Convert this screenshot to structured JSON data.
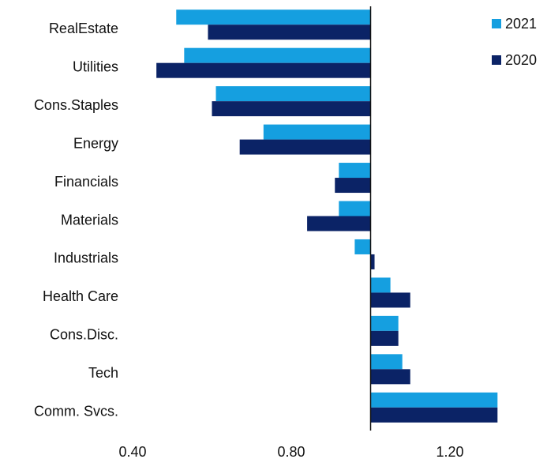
{
  "chart_data": {
    "type": "hbar",
    "categories": [
      "RealEstate",
      "Utilities",
      "Cons.Staples",
      "Energy",
      "Financials",
      "Materials",
      "Industrials",
      "Health Care",
      "Cons.Disc.",
      "Tech",
      "Comm. Svcs."
    ],
    "series": [
      {
        "name": "2021",
        "color": "#159fe0",
        "values": [
          0.51,
          0.53,
          0.61,
          0.73,
          0.92,
          0.92,
          0.96,
          1.05,
          1.07,
          1.08,
          1.32
        ]
      },
      {
        "name": "2020",
        "color": "#0b2366",
        "values": [
          0.59,
          0.46,
          0.6,
          0.67,
          0.91,
          0.84,
          1.01,
          1.1,
          1.07,
          1.1,
          1.32
        ]
      }
    ],
    "xlim": [
      0.4,
      1.33
    ],
    "xticks": [
      {
        "value": 0.4,
        "label": "0.40"
      },
      {
        "value": 0.8,
        "label": "0.80"
      },
      {
        "value": 1.2,
        "label": "1.20"
      }
    ],
    "baseline": 1.0,
    "legend": "top-right"
  }
}
